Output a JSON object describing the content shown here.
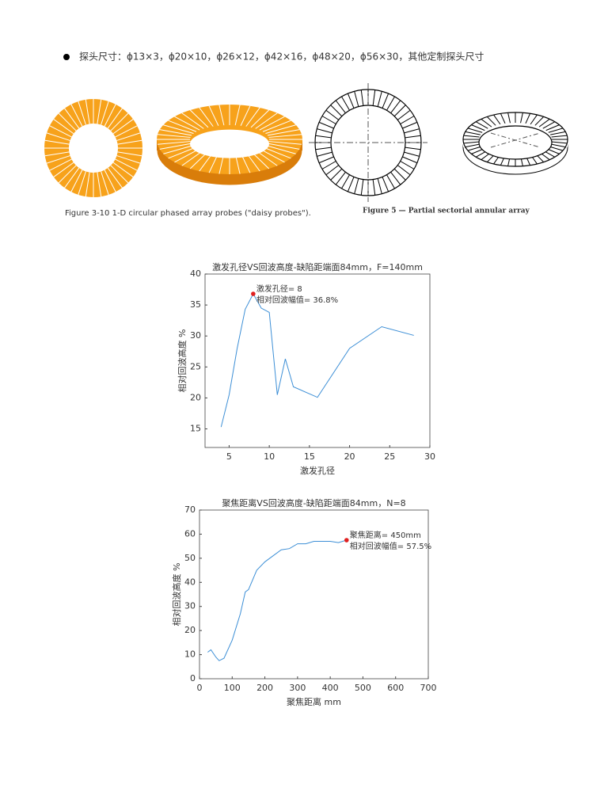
{
  "bullet": "探头尺寸：ϕ13×3，ϕ20×10，ϕ26×12，ϕ42×16，ϕ48×20，ϕ56×30，其他定制探头尺寸",
  "figures": [
    {
      "caption": "Figure 3-10  1-D circular phased array probes (\"daisy probes\")."
    },
    {
      "caption": "Figure 5 — Partial sectorial annular array"
    }
  ],
  "chart_data": [
    {
      "type": "line",
      "title": "激发孔径VS回波高度-缺陷距端面84mm，F=140mm",
      "x_label": "激发孔径",
      "y_label": "相对回波高度 %",
      "x": [
        4,
        5,
        6,
        7,
        8,
        9,
        10,
        11,
        12,
        13,
        16,
        20,
        24,
        28
      ],
      "series": [
        {
          "color": "#3d8fd6",
          "values": [
            15.3,
            20.5,
            28,
            34.3,
            36.8,
            34.5,
            33.8,
            20.5,
            26.3,
            21.8,
            20.1,
            28,
            31.5,
            30.1
          ]
        }
      ],
      "xlim": [
        2,
        30
      ],
      "xticks": [
        5,
        10,
        15,
        20,
        25,
        30
      ],
      "ylim": [
        12,
        40
      ],
      "yticks": [
        15,
        20,
        25,
        30,
        35,
        40
      ],
      "annotation": {
        "x": 8,
        "y": 36.8,
        "lines": [
          "激发孔径= 8",
          "相对回波幅值= 36.8%"
        ],
        "color": "#e02020"
      }
    },
    {
      "type": "line",
      "title": "聚焦距离VS回波高度-缺陷距端面84mm，N=8",
      "x_label": "聚焦距离 mm",
      "y_label": "相对回波高度 %",
      "x": [
        25,
        35,
        50,
        60,
        75,
        100,
        125,
        140,
        150,
        175,
        200,
        225,
        250,
        275,
        300,
        325,
        350,
        375,
        400,
        425,
        450
      ],
      "series": [
        {
          "color": "#3d8fd6",
          "values": [
            11,
            12,
            9,
            7.5,
            8.5,
            16,
            27,
            36,
            37,
            45,
            48.5,
            51,
            53.5,
            54,
            56,
            56,
            57,
            57,
            57,
            56.5,
            57.5
          ]
        }
      ],
      "xlim": [
        0,
        700
      ],
      "xticks": [
        0,
        100,
        200,
        300,
        400,
        500,
        600,
        700
      ],
      "ylim": [
        0,
        70
      ],
      "yticks": [
        0,
        10,
        20,
        30,
        40,
        50,
        60,
        70
      ],
      "annotation": {
        "x": 450,
        "y": 57.5,
        "lines": [
          "聚焦距离= 450mm",
          "相对回波幅值= 57.5%"
        ],
        "color": "#e02020"
      }
    }
  ]
}
